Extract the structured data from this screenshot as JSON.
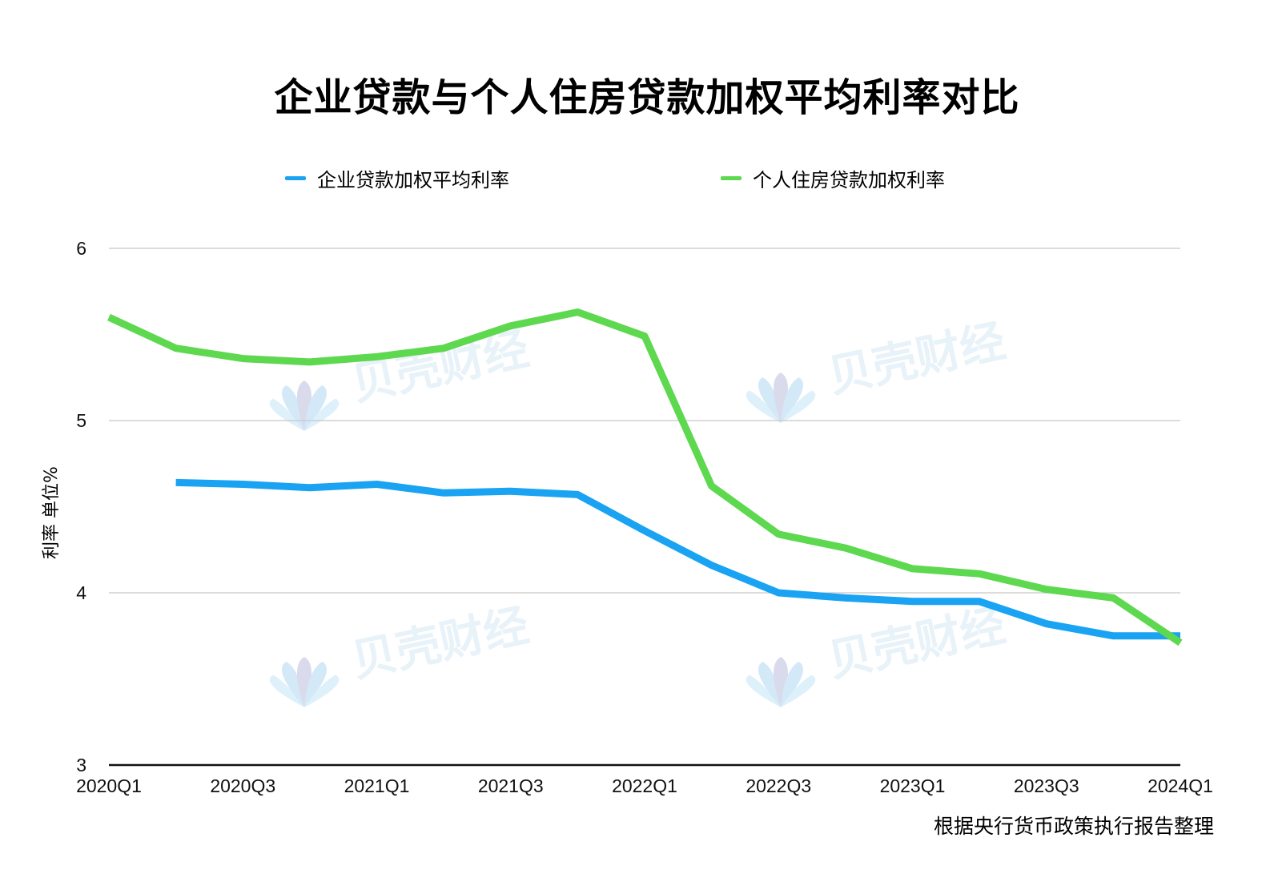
{
  "title": "企业贷款与个人住房贷款加权平均利率对比",
  "source": "根据央行货币政策执行报告整理",
  "watermark": "贝壳财经",
  "chart_data": {
    "type": "line",
    "title": "企业贷款与个人住房贷款加权平均利率对比",
    "ylabel": "利率 单位%",
    "xlabel": "",
    "ylim": [
      3,
      6
    ],
    "yticks": [
      3,
      4,
      5,
      6
    ],
    "grid": true,
    "legend_position": "top",
    "x": [
      "2020Q1",
      "2020Q2",
      "2020Q3",
      "2020Q4",
      "2021Q1",
      "2021Q2",
      "2021Q3",
      "2021Q4",
      "2022Q1",
      "2022Q2",
      "2022Q3",
      "2022Q4",
      "2023Q1",
      "2023Q2",
      "2023Q3",
      "2023Q4",
      "2024Q1"
    ],
    "xtick_labels": [
      "2020Q1",
      "2020Q3",
      "2021Q1",
      "2021Q3",
      "2022Q1",
      "2022Q3",
      "2023Q1",
      "2023Q3",
      "2024Q1"
    ],
    "series": [
      {
        "name": "企业贷款加权平均利率",
        "color": "#1aa3f2",
        "values": [
          null,
          4.64,
          4.63,
          4.61,
          4.63,
          4.58,
          4.59,
          4.57,
          4.36,
          4.16,
          4.0,
          3.97,
          3.95,
          3.95,
          3.82,
          3.75,
          3.75
        ]
      },
      {
        "name": "个人住房贷款加权利率",
        "color": "#5dd84f",
        "values": [
          5.6,
          5.42,
          5.36,
          5.34,
          5.37,
          5.42,
          5.55,
          5.63,
          5.49,
          4.62,
          4.34,
          4.26,
          4.14,
          4.11,
          4.02,
          3.97,
          3.71
        ]
      }
    ]
  }
}
